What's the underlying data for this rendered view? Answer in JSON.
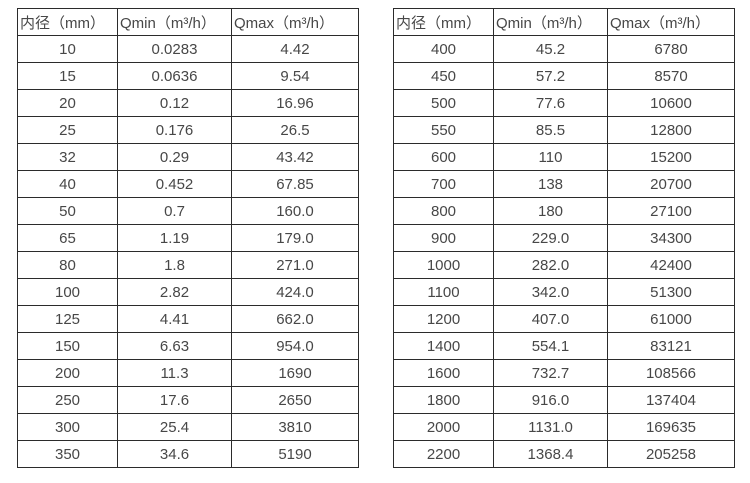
{
  "colors": {
    "background": "#ffffff",
    "border": "#2b2b2b",
    "text": "#474747"
  },
  "tables": [
    {
      "name": "flow-spec-table-small-diameters",
      "headers": [
        "内径（mm）",
        "Qmin（m³/h）",
        "Qmax（m³/h）"
      ],
      "rows": [
        [
          "10",
          "0.0283",
          "4.42"
        ],
        [
          "15",
          "0.0636",
          "9.54"
        ],
        [
          "20",
          "0.12",
          "16.96"
        ],
        [
          "25",
          "0.176",
          "26.5"
        ],
        [
          "32",
          "0.29",
          "43.42"
        ],
        [
          "40",
          "0.452",
          "67.85"
        ],
        [
          "50",
          "0.7",
          "160.0"
        ],
        [
          "65",
          "1.19",
          "179.0"
        ],
        [
          "80",
          "1.8",
          "271.0"
        ],
        [
          "100",
          "2.82",
          "424.0"
        ],
        [
          "125",
          "4.41",
          "662.0"
        ],
        [
          "150",
          "6.63",
          "954.0"
        ],
        [
          "200",
          "11.3",
          "1690"
        ],
        [
          "250",
          "17.6",
          "2650"
        ],
        [
          "300",
          "25.4",
          "3810"
        ],
        [
          "350",
          "34.6",
          "5190"
        ]
      ]
    },
    {
      "name": "flow-spec-table-large-diameters",
      "headers": [
        "内径（mm）",
        "Qmin（m³/h）",
        "Qmax（m³/h）"
      ],
      "rows": [
        [
          "400",
          "45.2",
          "6780"
        ],
        [
          "450",
          "57.2",
          "8570"
        ],
        [
          "500",
          "77.6",
          "10600"
        ],
        [
          "550",
          "85.5",
          "12800"
        ],
        [
          "600",
          "110",
          "15200"
        ],
        [
          "700",
          "138",
          "20700"
        ],
        [
          "800",
          "180",
          "27100"
        ],
        [
          "900",
          "229.0",
          "34300"
        ],
        [
          "1000",
          "282.0",
          "42400"
        ],
        [
          "1100",
          "342.0",
          "51300"
        ],
        [
          "1200",
          "407.0",
          "61000"
        ],
        [
          "1400",
          "554.1",
          "83121"
        ],
        [
          "1600",
          "732.7",
          "108566"
        ],
        [
          "1800",
          "916.0",
          "137404"
        ],
        [
          "2000",
          "1131.0",
          "169635"
        ],
        [
          "2200",
          "1368.4",
          "205258"
        ]
      ]
    }
  ]
}
